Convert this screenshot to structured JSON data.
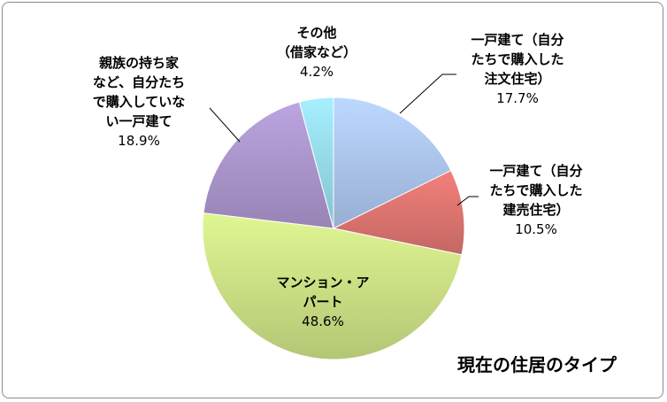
{
  "chart_data": {
    "type": "pie",
    "title": "現在の住居のタイプ",
    "slices": [
      {
        "label_lines": [
          "一戸建て（自分",
          "たちで購入した",
          "注文住宅）"
        ],
        "value": 17.7,
        "pct": "17.7%",
        "color": "#a9c1ea"
      },
      {
        "label_lines": [
          "一戸建て（自分",
          "たちで購入した",
          "建売住宅）"
        ],
        "value": 10.5,
        "pct": "10.5%",
        "color": "#d9726e"
      },
      {
        "label_lines": [
          "マンション・ア",
          "パート"
        ],
        "value": 48.6,
        "pct": "48.6%",
        "color": "#c8dc82"
      },
      {
        "label_lines": [
          "親族の持ち家",
          "など、自分たち",
          "で購入していな",
          "い一戸建て"
        ],
        "value": 18.9,
        "pct": "18.9%",
        "color": "#a893c8"
      },
      {
        "label_lines": [
          "その他",
          "（借家など）"
        ],
        "value": 4.2,
        "pct": "4.2%",
        "color": "#93d6e6"
      }
    ]
  }
}
